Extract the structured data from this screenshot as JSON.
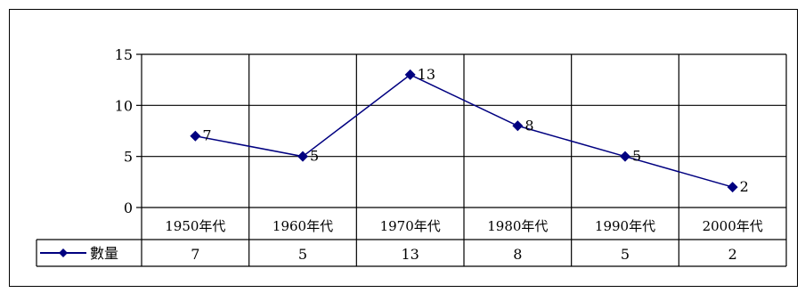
{
  "chart_data": {
    "type": "line",
    "title": "",
    "xlabel": "",
    "ylabel": "",
    "categories": [
      "1950年代",
      "1960年代",
      "1970年代",
      "1980年代",
      "1990年代",
      "2000年代"
    ],
    "series": [
      {
        "name": "數量",
        "values": [
          7,
          5,
          13,
          8,
          5,
          2
        ],
        "color": "#000080",
        "marker": "diamond"
      }
    ],
    "ylim": [
      0,
      15
    ],
    "yticks": [
      0,
      5,
      10,
      15
    ],
    "grid": true,
    "data_labels": true,
    "data_table": true,
    "legend_placement": "data-table-left"
  }
}
